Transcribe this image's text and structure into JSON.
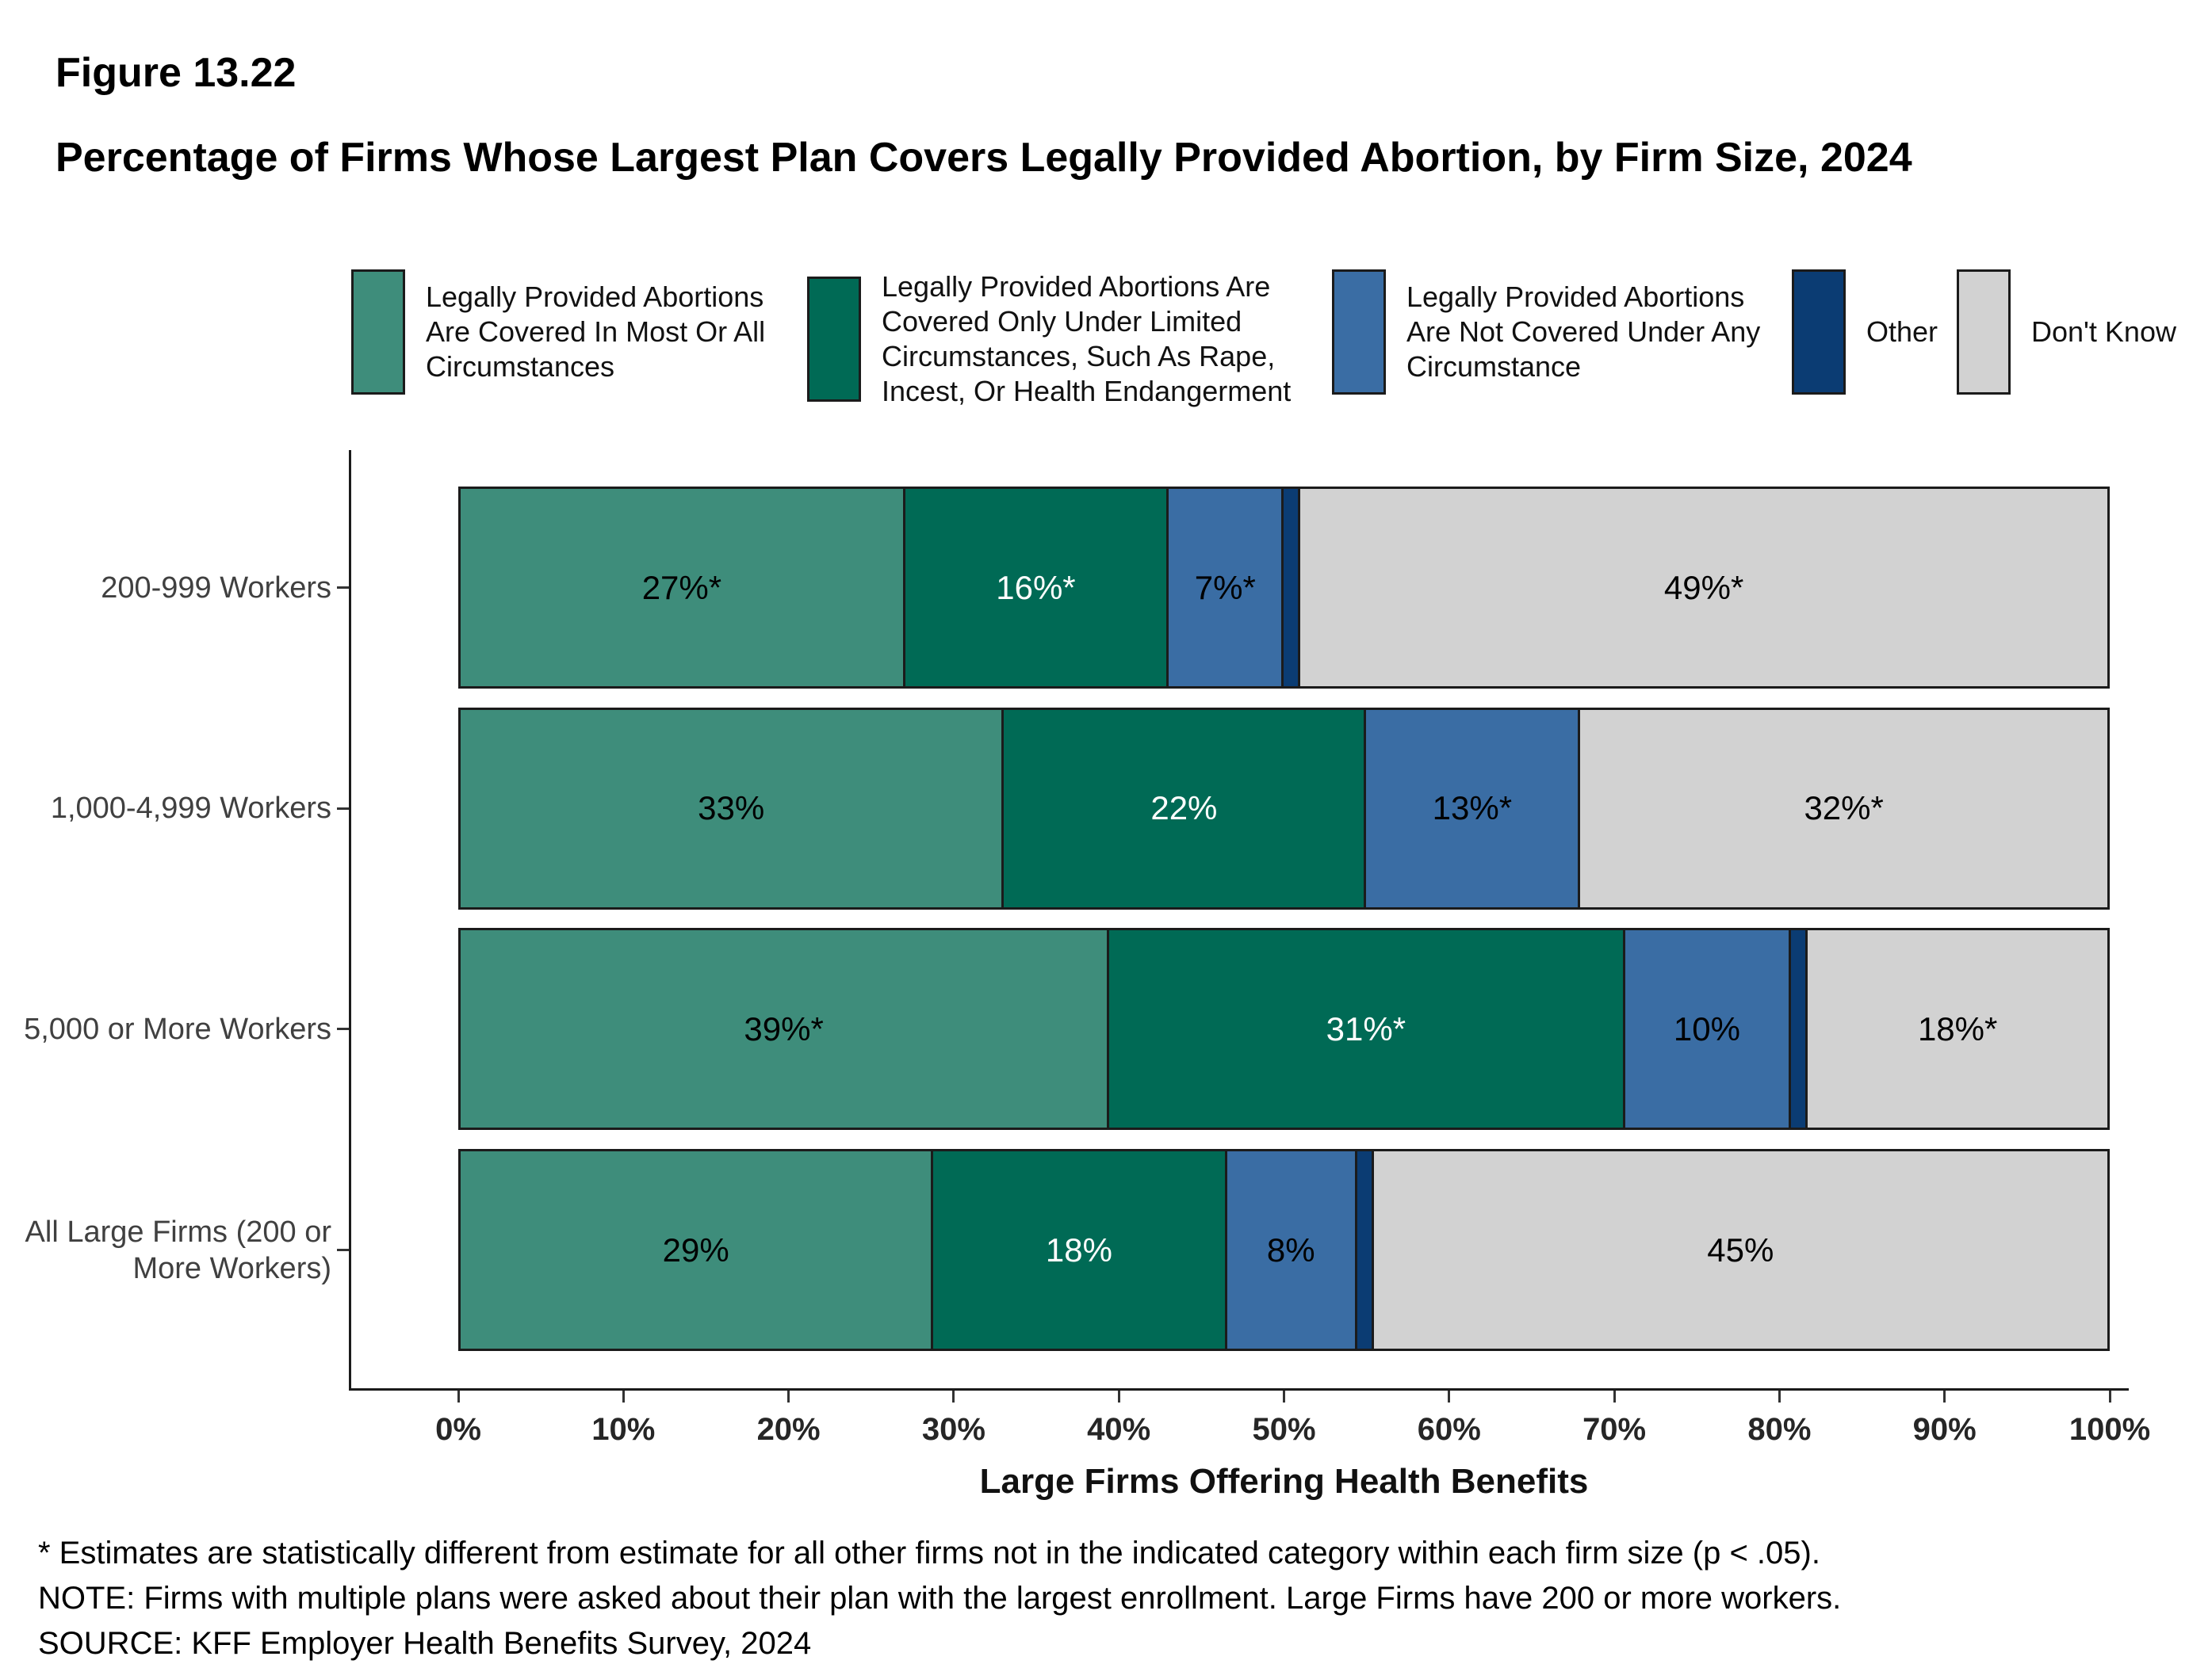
{
  "title": {
    "figure_number": "Figure 13.22",
    "text": "Percentage of Firms Whose Largest Plan Covers Legally Provided Abortion, by Firm Size, 2024"
  },
  "chart_data": {
    "type": "bar",
    "orientation": "horizontal",
    "stacked": true,
    "grid": false,
    "legend_position": "top",
    "categories": [
      "200-999 Workers",
      "1,000-4,999 Workers",
      "5,000 or More Workers",
      "All Large Firms (200 or More Workers)"
    ],
    "series": [
      {
        "name": "Legally Provided Abortions Are Covered In Most Or All Circumstances",
        "color": "#3e8d7b",
        "text_color": "#000000",
        "values": [
          27,
          33,
          39,
          29
        ],
        "labels": [
          "27%*",
          "33%",
          "39%*",
          "29%"
        ]
      },
      {
        "name": "Legally Provided Abortions Are Covered Only Under Limited Circumstances, Such As Rape, Incest, Or Health Endangerment",
        "color": "#006a55",
        "text_color": "#ffffff",
        "values": [
          16,
          22,
          31,
          18
        ],
        "labels": [
          "16%*",
          "22%",
          "31%*",
          "18%"
        ]
      },
      {
        "name": "Legally Provided Abortions Are Not Covered Under Any Circumstance",
        "color": "#3a6da4",
        "text_color": "#000000",
        "values": [
          7,
          13,
          10,
          8
        ],
        "labels": [
          "7%*",
          "13%*",
          "10%",
          "8%"
        ]
      },
      {
        "name": "Other",
        "color": "#0b3c73",
        "text_color": "#ffffff",
        "values": [
          1,
          0,
          1,
          1
        ],
        "labels": [
          "",
          "",
          "",
          ""
        ]
      },
      {
        "name": "Don't Know",
        "color": "#d2d2d2",
        "text_color": "#000000",
        "values": [
          49,
          32,
          18,
          45
        ],
        "labels": [
          "49%*",
          "32%*",
          "18%*",
          "45%"
        ]
      }
    ],
    "xlabel": "Large Firms Offering Health Benefits",
    "x_ticks": [
      "0%",
      "10%",
      "20%",
      "30%",
      "40%",
      "50%",
      "60%",
      "70%",
      "80%",
      "90%",
      "100%"
    ],
    "xlim": [
      0,
      100
    ]
  },
  "footnotes": [
    "* Estimates are statistically different from estimate for all other firms not in the indicated category within each firm size (p < .05).",
    "NOTE: Firms with multiple plans were asked about their plan with the largest enrollment.  Large Firms have 200 or more workers.",
    "SOURCE: KFF Employer Health Benefits Survey, 2024"
  ]
}
